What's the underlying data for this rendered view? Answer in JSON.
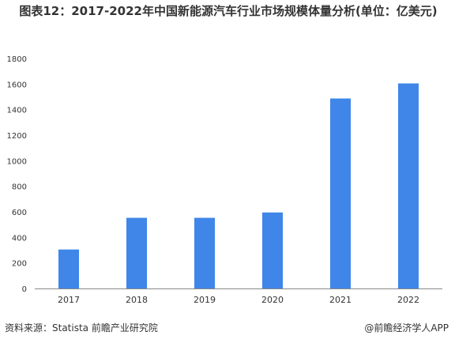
{
  "chart_data": {
    "type": "bar",
    "title": "图表12：2017-2022年中国新能源汽车行业市场规模体量分析(单位：亿美元)",
    "categories": [
      "2017",
      "2018",
      "2019",
      "2020",
      "2021",
      "2022"
    ],
    "values": [
      305,
      553,
      553,
      595,
      1487,
      1605
    ],
    "ylim": [
      0,
      1800
    ],
    "yticks": [
      0,
      200,
      400,
      600,
      800,
      1000,
      1200,
      1400,
      1600,
      1800
    ],
    "xlabel": "",
    "ylabel": "",
    "grid": false,
    "legend": "none",
    "bar_color": "#3f86e8"
  },
  "footer": {
    "source": "资料来源：Statista 前瞻产业研究院",
    "brand": "@前瞻经济学人APP"
  }
}
